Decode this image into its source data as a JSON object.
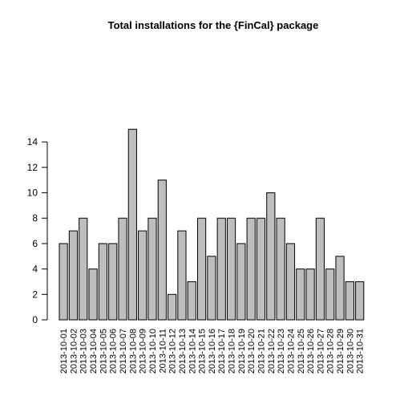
{
  "chart_data": {
    "type": "bar",
    "title": "Total installations for the {FinCal} package",
    "xlabel": "",
    "ylabel": "",
    "ylim": [
      0,
      15
    ],
    "y_ticks": [
      0,
      2,
      4,
      6,
      8,
      10,
      12,
      14
    ],
    "grid": false,
    "legend": "none",
    "bar_fill": "#bebebe",
    "bar_stroke": "#000000",
    "categories": [
      "2013-10-01",
      "2013-10-02",
      "2013-10-03",
      "2013-10-04",
      "2013-10-05",
      "2013-10-06",
      "2013-10-07",
      "2013-10-08",
      "2013-10-09",
      "2013-10-10",
      "2013-10-11",
      "2013-10-12",
      "2013-10-13",
      "2013-10-14",
      "2013-10-15",
      "2013-10-16",
      "2013-10-17",
      "2013-10-18",
      "2013-10-19",
      "2013-10-20",
      "2013-10-21",
      "2013-10-22",
      "2013-10-23",
      "2013-10-24",
      "2013-10-25",
      "2013-10-26",
      "2013-10-27",
      "2013-10-28",
      "2013-10-29",
      "2013-10-30",
      "2013-10-31"
    ],
    "values": [
      6,
      7,
      8,
      4,
      6,
      6,
      8,
      15,
      7,
      8,
      11,
      2,
      7,
      3,
      8,
      5,
      8,
      8,
      6,
      8,
      8,
      10,
      8,
      6,
      4,
      4,
      8,
      4,
      5,
      3,
      3
    ]
  }
}
